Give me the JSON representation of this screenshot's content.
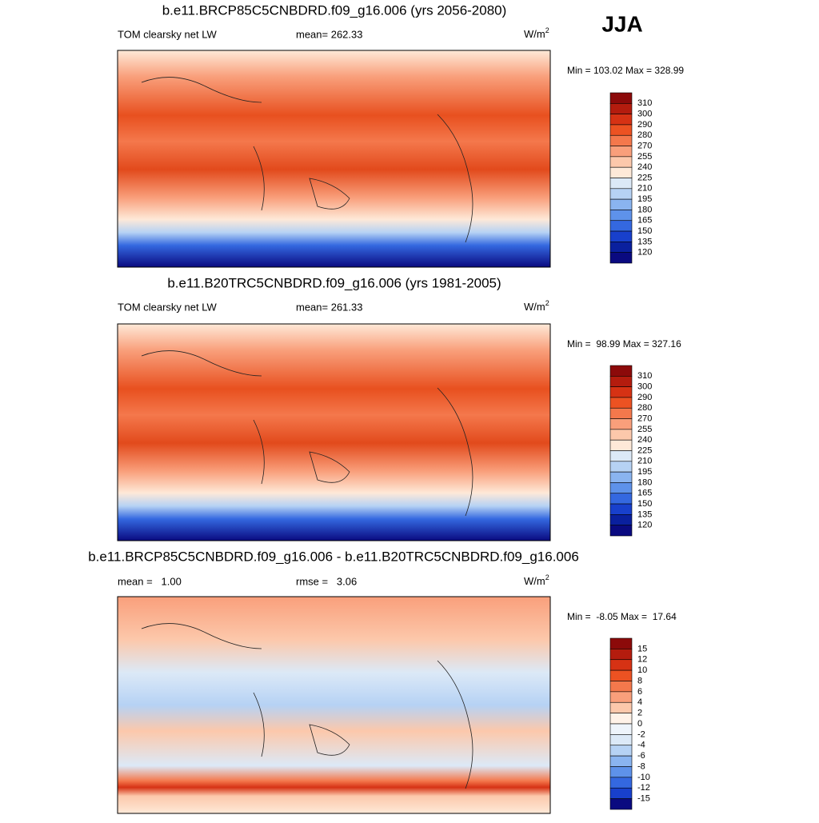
{
  "header": {
    "season": "JJA"
  },
  "panels": [
    {
      "title": "b.e11.BRCP85C5CNBDRD.f09_g16.006 (yrs 2056-2080)",
      "left_label": "TOM clearsky net LW",
      "center_label": "mean= 262.33",
      "units": "W/m",
      "units_sup": "2",
      "minmax": "Min = 103.02 Max = 328.99",
      "colorbar": {
        "labels": [
          310,
          300,
          290,
          280,
          270,
          255,
          240,
          225,
          210,
          195,
          180,
          165,
          150,
          135,
          120
        ],
        "colors": [
          "#8c0a0a",
          "#b41c0e",
          "#d63214",
          "#ec5222",
          "#f4784c",
          "#f99f7b",
          "#fcc8ab",
          "#fee9d8",
          "#dce9f7",
          "#b6d2f4",
          "#8ab4f0",
          "#5e92ea",
          "#3468e0",
          "#1840cc",
          "#0a209e",
          "#0a0a80"
        ]
      }
    },
    {
      "title": "b.e11.B20TRC5CNBDRD.f09_g16.006 (yrs 1981-2005)",
      "left_label": "TOM clearsky net LW",
      "center_label": "mean= 261.33",
      "units": "W/m",
      "units_sup": "2",
      "minmax": "Min =  98.99 Max = 327.16",
      "colorbar": {
        "labels": [
          310,
          300,
          290,
          280,
          270,
          255,
          240,
          225,
          210,
          195,
          180,
          165,
          150,
          135,
          120
        ],
        "colors": [
          "#8c0a0a",
          "#b41c0e",
          "#d63214",
          "#ec5222",
          "#f4784c",
          "#f99f7b",
          "#fcc8ab",
          "#fee9d8",
          "#dce9f7",
          "#b6d2f4",
          "#8ab4f0",
          "#5e92ea",
          "#3468e0",
          "#1840cc",
          "#0a209e",
          "#0a0a80"
        ]
      }
    },
    {
      "title": "b.e11.BRCP85C5CNBDRD.f09_g16.006 - b.e11.B20TRC5CNBDRD.f09_g16.006",
      "left_label": "mean =   1.00",
      "center_label": "rmse =   3.06",
      "units": "W/m",
      "units_sup": "2",
      "minmax": "Min =  -8.05 Max =  17.64",
      "colorbar": {
        "labels": [
          15,
          12,
          10,
          8,
          6,
          4,
          2,
          0,
          -2,
          -4,
          -6,
          -8,
          -10,
          -12,
          -15
        ],
        "colors": [
          "#8c0a0a",
          "#b41c0e",
          "#d63214",
          "#ec5222",
          "#f4784c",
          "#f99f7b",
          "#fcc8ab",
          "#fff2e8",
          "#eef4fb",
          "#dce9f7",
          "#b6d2f4",
          "#8ab4f0",
          "#5e92ea",
          "#3468e0",
          "#1840cc",
          "#0a0a80"
        ]
      }
    }
  ]
}
